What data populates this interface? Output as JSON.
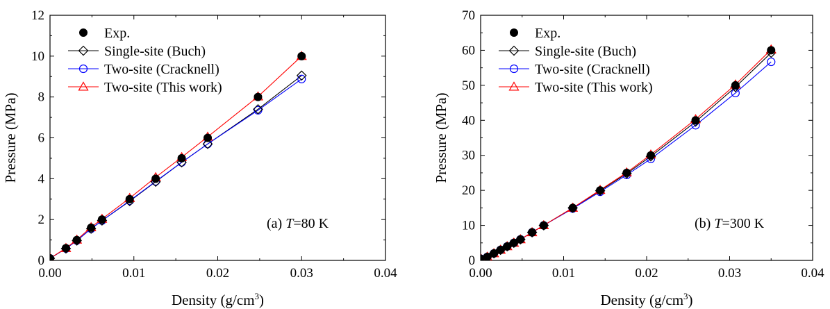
{
  "chart_data": [
    {
      "type": "line",
      "panel_label": "(a) ",
      "panel_T_symbol": "T",
      "panel_T_value": "=80 K",
      "xlabel": "Density (g/cm",
      "xlabel_sup": "3",
      "xlabel_close": ")",
      "ylabel": "Pressure (MPa)",
      "xlim": [
        0.0,
        0.04
      ],
      "ylim": [
        0,
        12
      ],
      "xticks": [
        "0.00",
        "0.01",
        "0.02",
        "0.03",
        "0.04"
      ],
      "yticks": [
        "0",
        "2",
        "4",
        "6",
        "8",
        "10",
        "12"
      ],
      "legend_position": "top-left",
      "series": [
        {
          "name": "Exp.",
          "marker": "filled-circle",
          "line": false,
          "color": "#000000",
          "x": [
            0.0,
            0.0019,
            0.0032,
            0.0049,
            0.0062,
            0.0095,
            0.0126,
            0.0157,
            0.0188,
            0.0248,
            0.03
          ],
          "y": [
            0.1,
            0.6,
            1.0,
            1.6,
            2.0,
            3.0,
            4.0,
            5.0,
            6.0,
            8.0,
            10.0
          ]
        },
        {
          "name": "Single-site (Buch)",
          "marker": "open-diamond",
          "line": true,
          "color": "#000000",
          "x": [
            0.0,
            0.0019,
            0.0032,
            0.0049,
            0.0062,
            0.0095,
            0.0126,
            0.0157,
            0.0188,
            0.0248,
            0.03
          ],
          "y": [
            0.1,
            0.58,
            0.97,
            1.55,
            1.95,
            2.9,
            3.85,
            4.8,
            5.7,
            7.4,
            9.05
          ]
        },
        {
          "name": "Two-site (Cracknell)",
          "marker": "open-circle",
          "line": true,
          "color": "#0000ff",
          "x": [
            0.0,
            0.0019,
            0.0032,
            0.0049,
            0.0062,
            0.0095,
            0.0126,
            0.0157,
            0.0188,
            0.0248,
            0.03
          ],
          "y": [
            0.1,
            0.58,
            0.97,
            1.55,
            1.95,
            2.92,
            3.87,
            4.8,
            5.7,
            7.35,
            8.88
          ]
        },
        {
          "name": "Two-site (This work)",
          "marker": "open-triangle",
          "line": true,
          "color": "#ff0000",
          "x": [
            0.0,
            0.0019,
            0.0032,
            0.0049,
            0.0062,
            0.0095,
            0.0126,
            0.0157,
            0.0188,
            0.0248,
            0.03
          ],
          "y": [
            0.1,
            0.6,
            1.01,
            1.62,
            2.03,
            3.05,
            4.07,
            5.05,
            6.05,
            8.02,
            10.0
          ]
        }
      ]
    },
    {
      "type": "line",
      "panel_label": "(b) ",
      "panel_T_symbol": "T",
      "panel_T_value": "=300 K",
      "xlabel": "Density (g/cm",
      "xlabel_sup": "3",
      "xlabel_close": ")",
      "ylabel": "Pressure (MPa)",
      "xlim": [
        0.0,
        0.04
      ],
      "ylim": [
        0,
        70
      ],
      "xticks": [
        "0.00",
        "0.01",
        "0.02",
        "0.03",
        "0.04"
      ],
      "yticks": [
        "0",
        "10",
        "20",
        "30",
        "40",
        "50",
        "60",
        "70"
      ],
      "legend_position": "top-left",
      "series": [
        {
          "name": "Exp.",
          "marker": "filled-circle",
          "line": false,
          "color": "#000000",
          "x": [
            0.0,
            0.0008,
            0.0016,
            0.0024,
            0.0032,
            0.004,
            0.0048,
            0.0062,
            0.0076,
            0.0111,
            0.0144,
            0.0176,
            0.0205,
            0.0259,
            0.0307,
            0.035
          ],
          "y": [
            0.5,
            1,
            2,
            3,
            4,
            5,
            6,
            8,
            10,
            15,
            20,
            25,
            30,
            40,
            50,
            60
          ]
        },
        {
          "name": "Single-site (Buch)",
          "marker": "open-diamond",
          "line": true,
          "color": "#000000",
          "x": [
            0.0,
            0.0008,
            0.0016,
            0.0024,
            0.0032,
            0.004,
            0.0048,
            0.0062,
            0.0076,
            0.0111,
            0.0144,
            0.0176,
            0.0205,
            0.0259,
            0.0307,
            0.035
          ],
          "y": [
            0.5,
            1,
            2,
            3,
            4,
            5,
            6,
            8,
            10,
            15,
            19.9,
            24.8,
            29.7,
            39.6,
            49.5,
            59.3
          ]
        },
        {
          "name": "Two-site (Cracknell)",
          "marker": "open-circle",
          "line": true,
          "color": "#0000ff",
          "x": [
            0.0,
            0.0008,
            0.0016,
            0.0024,
            0.0032,
            0.004,
            0.0048,
            0.0062,
            0.0076,
            0.0111,
            0.0144,
            0.0176,
            0.0205,
            0.0259,
            0.0307,
            0.035
          ],
          "y": [
            0.5,
            1,
            2,
            3,
            4,
            5,
            6,
            8,
            10,
            14.8,
            19.6,
            24.4,
            29.0,
            38.6,
            47.8,
            56.7
          ]
        },
        {
          "name": "Two-site (This work)",
          "marker": "open-triangle",
          "line": true,
          "color": "#ff0000",
          "x": [
            0.0,
            0.0008,
            0.0016,
            0.0024,
            0.0032,
            0.004,
            0.0048,
            0.0062,
            0.0076,
            0.0111,
            0.0144,
            0.0176,
            0.0205,
            0.0259,
            0.0307,
            0.035
          ],
          "y": [
            0.5,
            1,
            2,
            3,
            4,
            5,
            6,
            8,
            10,
            15,
            20.1,
            25.1,
            30.2,
            40.3,
            50.2,
            60.2
          ]
        }
      ]
    }
  ]
}
